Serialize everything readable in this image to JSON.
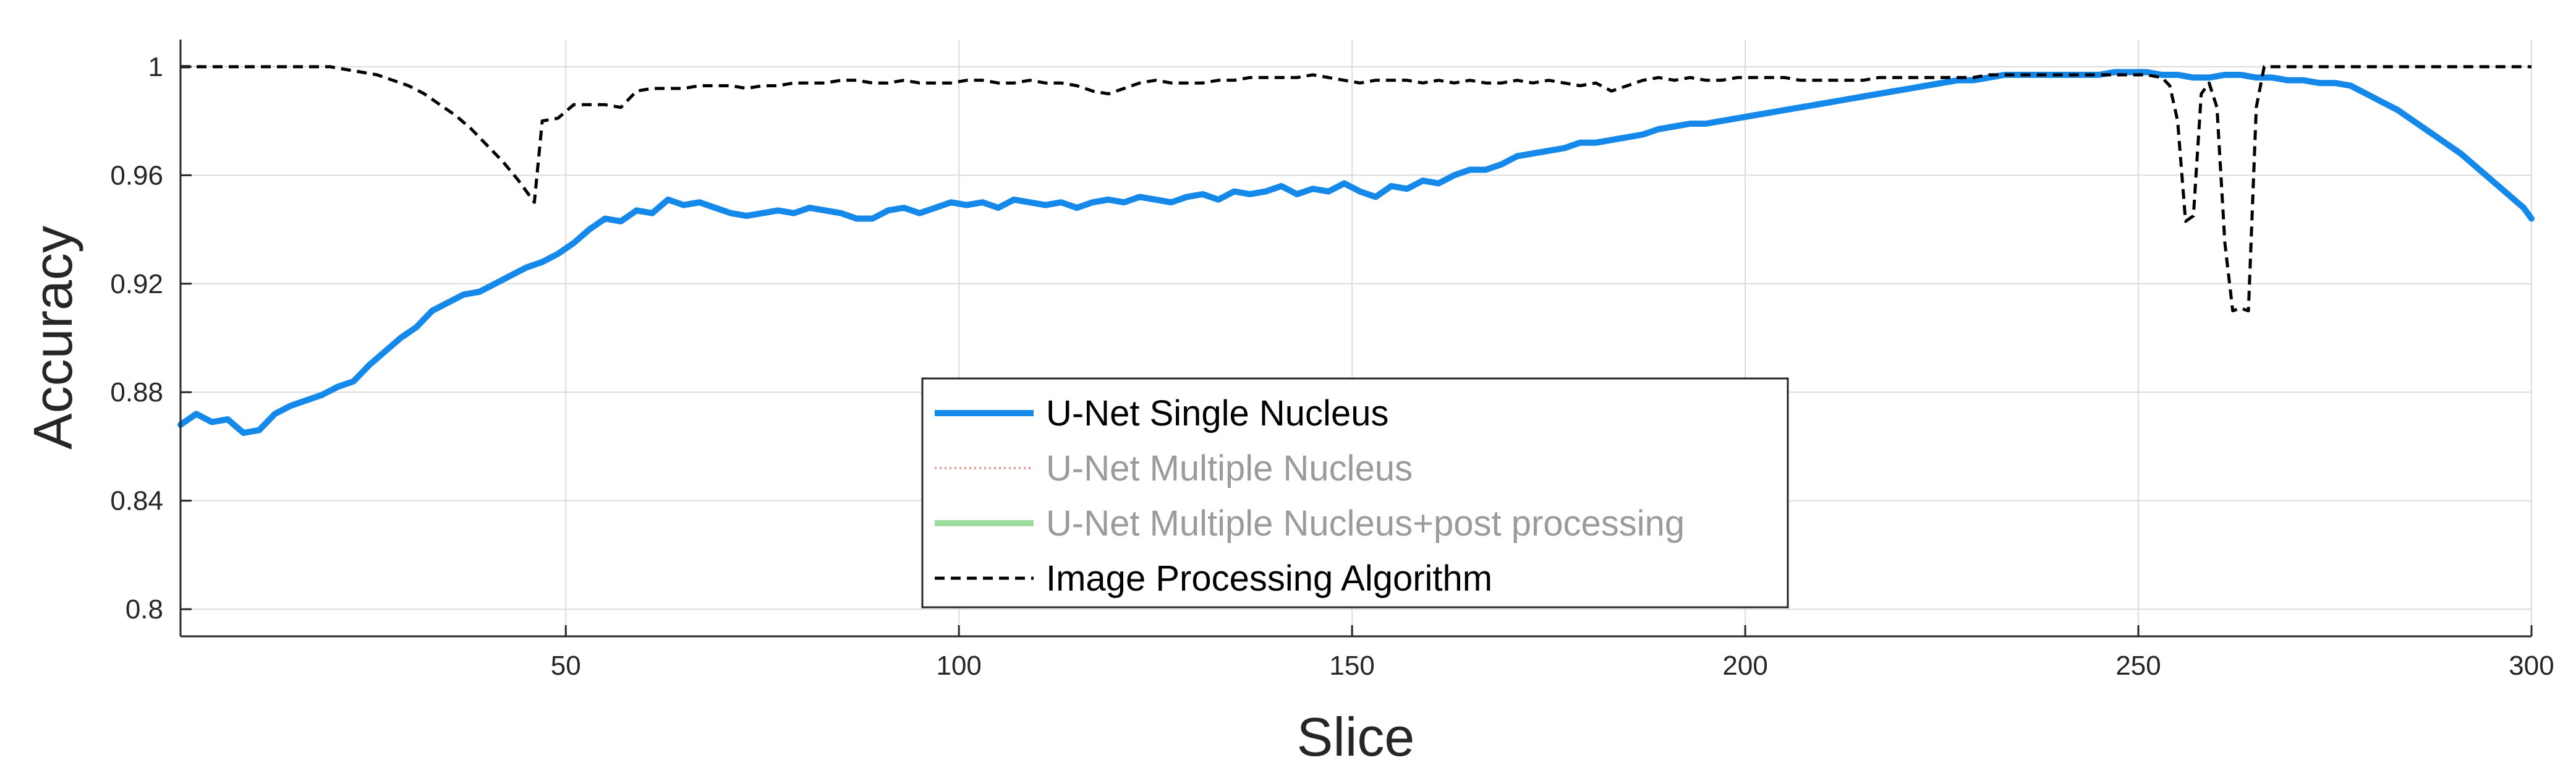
{
  "chart_data": {
    "type": "line",
    "xlabel": "Slice",
    "ylabel": "Accuracy",
    "xlim": [
      1,
      300
    ],
    "ylim": [
      0.79,
      1.01
    ],
    "xticks": [
      50,
      100,
      150,
      200,
      250,
      300
    ],
    "yticks": [
      0.8,
      0.84,
      0.88,
      0.92,
      0.96,
      1
    ],
    "xtick_labels": [
      "50",
      "100",
      "150",
      "200",
      "250",
      "300"
    ],
    "ytick_labels": [
      "0.8",
      "0.84",
      "0.88",
      "0.92",
      "0.96",
      "1"
    ],
    "grid": true,
    "legend_position": "bottom-center",
    "series": [
      {
        "name": "U-Net Single Nucleus",
        "color": "#1589e9",
        "style": "solid",
        "visible": true,
        "points": [
          [
            1,
            0.868
          ],
          [
            3,
            0.872
          ],
          [
            5,
            0.869
          ],
          [
            7,
            0.87
          ],
          [
            9,
            0.865
          ],
          [
            11,
            0.866
          ],
          [
            13,
            0.872
          ],
          [
            15,
            0.875
          ],
          [
            17,
            0.877
          ],
          [
            19,
            0.879
          ],
          [
            21,
            0.882
          ],
          [
            23,
            0.884
          ],
          [
            25,
            0.89
          ],
          [
            27,
            0.895
          ],
          [
            29,
            0.9
          ],
          [
            31,
            0.904
          ],
          [
            33,
            0.91
          ],
          [
            35,
            0.913
          ],
          [
            37,
            0.916
          ],
          [
            39,
            0.917
          ],
          [
            41,
            0.92
          ],
          [
            43,
            0.923
          ],
          [
            45,
            0.926
          ],
          [
            47,
            0.928
          ],
          [
            49,
            0.931
          ],
          [
            51,
            0.935
          ],
          [
            53,
            0.94
          ],
          [
            55,
            0.944
          ],
          [
            57,
            0.943
          ],
          [
            59,
            0.947
          ],
          [
            61,
            0.946
          ],
          [
            63,
            0.951
          ],
          [
            65,
            0.949
          ],
          [
            67,
            0.95
          ],
          [
            69,
            0.948
          ],
          [
            71,
            0.946
          ],
          [
            73,
            0.945
          ],
          [
            75,
            0.946
          ],
          [
            77,
            0.947
          ],
          [
            79,
            0.946
          ],
          [
            81,
            0.948
          ],
          [
            83,
            0.947
          ],
          [
            85,
            0.946
          ],
          [
            87,
            0.944
          ],
          [
            89,
            0.944
          ],
          [
            91,
            0.947
          ],
          [
            93,
            0.948
          ],
          [
            95,
            0.946
          ],
          [
            97,
            0.948
          ],
          [
            99,
            0.95
          ],
          [
            101,
            0.949
          ],
          [
            103,
            0.95
          ],
          [
            105,
            0.948
          ],
          [
            107,
            0.951
          ],
          [
            109,
            0.95
          ],
          [
            111,
            0.949
          ],
          [
            113,
            0.95
          ],
          [
            115,
            0.948
          ],
          [
            117,
            0.95
          ],
          [
            119,
            0.951
          ],
          [
            121,
            0.95
          ],
          [
            123,
            0.952
          ],
          [
            125,
            0.951
          ],
          [
            127,
            0.95
          ],
          [
            129,
            0.952
          ],
          [
            131,
            0.953
          ],
          [
            133,
            0.951
          ],
          [
            135,
            0.954
          ],
          [
            137,
            0.953
          ],
          [
            139,
            0.954
          ],
          [
            141,
            0.956
          ],
          [
            143,
            0.953
          ],
          [
            145,
            0.955
          ],
          [
            147,
            0.954
          ],
          [
            149,
            0.957
          ],
          [
            151,
            0.954
          ],
          [
            153,
            0.952
          ],
          [
            155,
            0.956
          ],
          [
            157,
            0.955
          ],
          [
            159,
            0.958
          ],
          [
            161,
            0.957
          ],
          [
            163,
            0.96
          ],
          [
            165,
            0.962
          ],
          [
            167,
            0.962
          ],
          [
            169,
            0.964
          ],
          [
            171,
            0.967
          ],
          [
            173,
            0.968
          ],
          [
            175,
            0.969
          ],
          [
            177,
            0.97
          ],
          [
            179,
            0.972
          ],
          [
            181,
            0.972
          ],
          [
            183,
            0.973
          ],
          [
            185,
            0.974
          ],
          [
            187,
            0.975
          ],
          [
            189,
            0.977
          ],
          [
            191,
            0.978
          ],
          [
            193,
            0.979
          ],
          [
            195,
            0.979
          ],
          [
            197,
            0.98
          ],
          [
            199,
            0.981
          ],
          [
            201,
            0.982
          ],
          [
            203,
            0.983
          ],
          [
            205,
            0.984
          ],
          [
            207,
            0.985
          ],
          [
            209,
            0.986
          ],
          [
            211,
            0.987
          ],
          [
            213,
            0.988
          ],
          [
            215,
            0.989
          ],
          [
            217,
            0.99
          ],
          [
            219,
            0.991
          ],
          [
            221,
            0.992
          ],
          [
            223,
            0.993
          ],
          [
            225,
            0.994
          ],
          [
            227,
            0.995
          ],
          [
            229,
            0.995
          ],
          [
            231,
            0.996
          ],
          [
            233,
            0.997
          ],
          [
            235,
            0.997
          ],
          [
            237,
            0.997
          ],
          [
            239,
            0.997
          ],
          [
            241,
            0.997
          ],
          [
            243,
            0.997
          ],
          [
            245,
            0.997
          ],
          [
            247,
            0.998
          ],
          [
            249,
            0.998
          ],
          [
            251,
            0.998
          ],
          [
            253,
            0.997
          ],
          [
            255,
            0.997
          ],
          [
            257,
            0.996
          ],
          [
            259,
            0.996
          ],
          [
            261,
            0.997
          ],
          [
            263,
            0.997
          ],
          [
            265,
            0.996
          ],
          [
            267,
            0.996
          ],
          [
            269,
            0.995
          ],
          [
            271,
            0.995
          ],
          [
            273,
            0.994
          ],
          [
            275,
            0.994
          ],
          [
            277,
            0.993
          ],
          [
            279,
            0.99
          ],
          [
            281,
            0.987
          ],
          [
            283,
            0.984
          ],
          [
            285,
            0.98
          ],
          [
            287,
            0.976
          ],
          [
            289,
            0.972
          ],
          [
            291,
            0.968
          ],
          [
            293,
            0.963
          ],
          [
            295,
            0.958
          ],
          [
            297,
            0.953
          ],
          [
            299,
            0.948
          ],
          [
            300,
            0.944
          ]
        ]
      },
      {
        "name": "U-Net Multiple Nucleus",
        "color": "#e8a09a",
        "style": "dotted",
        "visible": false
      },
      {
        "name": "U-Net Multiple Nucleus+post processing",
        "color": "#9fdc9f",
        "style": "solid",
        "visible": false
      },
      {
        "name": "Image Processing Algorithm",
        "color": "#000000",
        "style": "dashed",
        "visible": true,
        "points": [
          [
            1,
            1.0
          ],
          [
            20,
            1.0
          ],
          [
            22,
            0.999
          ],
          [
            24,
            0.998
          ],
          [
            26,
            0.997
          ],
          [
            28,
            0.995
          ],
          [
            30,
            0.993
          ],
          [
            32,
            0.99
          ],
          [
            34,
            0.986
          ],
          [
            36,
            0.982
          ],
          [
            38,
            0.977
          ],
          [
            40,
            0.971
          ],
          [
            42,
            0.965
          ],
          [
            44,
            0.958
          ],
          [
            46,
            0.95
          ],
          [
            47,
            0.98
          ],
          [
            49,
            0.981
          ],
          [
            51,
            0.986
          ],
          [
            53,
            0.986
          ],
          [
            55,
            0.986
          ],
          [
            57,
            0.985
          ],
          [
            59,
            0.991
          ],
          [
            61,
            0.992
          ],
          [
            63,
            0.992
          ],
          [
            65,
            0.992
          ],
          [
            67,
            0.993
          ],
          [
            69,
            0.993
          ],
          [
            71,
            0.993
          ],
          [
            73,
            0.992
          ],
          [
            75,
            0.993
          ],
          [
            77,
            0.993
          ],
          [
            79,
            0.994
          ],
          [
            81,
            0.994
          ],
          [
            83,
            0.994
          ],
          [
            85,
            0.995
          ],
          [
            87,
            0.995
          ],
          [
            89,
            0.994
          ],
          [
            91,
            0.994
          ],
          [
            93,
            0.995
          ],
          [
            95,
            0.994
          ],
          [
            97,
            0.994
          ],
          [
            99,
            0.994
          ],
          [
            101,
            0.995
          ],
          [
            103,
            0.995
          ],
          [
            105,
            0.994
          ],
          [
            107,
            0.994
          ],
          [
            109,
            0.995
          ],
          [
            111,
            0.994
          ],
          [
            113,
            0.994
          ],
          [
            115,
            0.993
          ],
          [
            117,
            0.991
          ],
          [
            119,
            0.99
          ],
          [
            121,
            0.992
          ],
          [
            123,
            0.994
          ],
          [
            125,
            0.995
          ],
          [
            127,
            0.994
          ],
          [
            129,
            0.994
          ],
          [
            131,
            0.994
          ],
          [
            133,
            0.995
          ],
          [
            135,
            0.995
          ],
          [
            137,
            0.996
          ],
          [
            139,
            0.996
          ],
          [
            141,
            0.996
          ],
          [
            143,
            0.996
          ],
          [
            145,
            0.997
          ],
          [
            147,
            0.996
          ],
          [
            149,
            0.995
          ],
          [
            151,
            0.994
          ],
          [
            153,
            0.995
          ],
          [
            155,
            0.995
          ],
          [
            157,
            0.995
          ],
          [
            159,
            0.994
          ],
          [
            161,
            0.995
          ],
          [
            163,
            0.994
          ],
          [
            165,
            0.995
          ],
          [
            167,
            0.994
          ],
          [
            169,
            0.994
          ],
          [
            171,
            0.995
          ],
          [
            173,
            0.994
          ],
          [
            175,
            0.995
          ],
          [
            177,
            0.994
          ],
          [
            179,
            0.993
          ],
          [
            181,
            0.994
          ],
          [
            183,
            0.991
          ],
          [
            185,
            0.993
          ],
          [
            187,
            0.995
          ],
          [
            189,
            0.996
          ],
          [
            191,
            0.995
          ],
          [
            193,
            0.996
          ],
          [
            195,
            0.995
          ],
          [
            197,
            0.995
          ],
          [
            199,
            0.996
          ],
          [
            201,
            0.996
          ],
          [
            203,
            0.996
          ],
          [
            205,
            0.996
          ],
          [
            207,
            0.995
          ],
          [
            209,
            0.995
          ],
          [
            211,
            0.995
          ],
          [
            213,
            0.995
          ],
          [
            215,
            0.995
          ],
          [
            217,
            0.996
          ],
          [
            219,
            0.996
          ],
          [
            221,
            0.996
          ],
          [
            223,
            0.996
          ],
          [
            225,
            0.996
          ],
          [
            227,
            0.996
          ],
          [
            229,
            0.996
          ],
          [
            231,
            0.997
          ],
          [
            233,
            0.997
          ],
          [
            235,
            0.997
          ],
          [
            237,
            0.997
          ],
          [
            239,
            0.997
          ],
          [
            241,
            0.997
          ],
          [
            243,
            0.997
          ],
          [
            245,
            0.997
          ],
          [
            247,
            0.997
          ],
          [
            249,
            0.997
          ],
          [
            251,
            0.997
          ],
          [
            253,
            0.996
          ],
          [
            254,
            0.993
          ],
          [
            255,
            0.98
          ],
          [
            256,
            0.943
          ],
          [
            257,
            0.945
          ],
          [
            258,
            0.99
          ],
          [
            259,
            0.994
          ],
          [
            260,
            0.985
          ],
          [
            261,
            0.935
          ],
          [
            262,
            0.91
          ],
          [
            263,
            0.911
          ],
          [
            264,
            0.91
          ],
          [
            265,
            0.985
          ],
          [
            266,
            1.0
          ],
          [
            270,
            1.0
          ],
          [
            280,
            1.0
          ],
          [
            290,
            1.0
          ],
          [
            300,
            1.0
          ]
        ]
      }
    ]
  }
}
